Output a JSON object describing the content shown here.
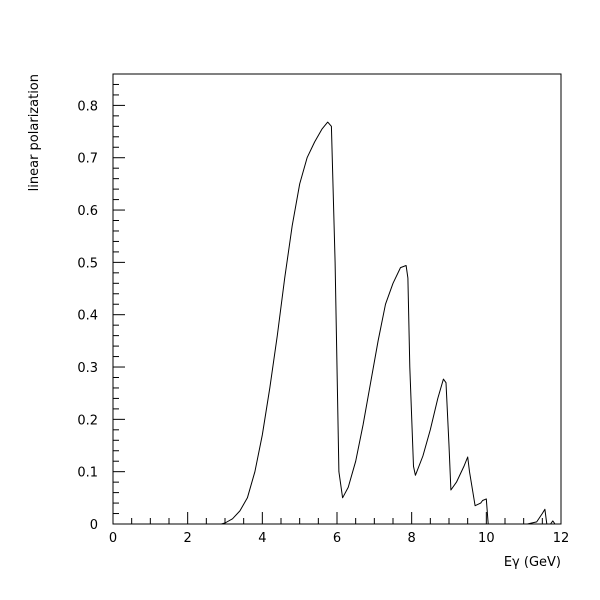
{
  "chart_data": {
    "type": "line",
    "title": "",
    "xlabel": "Eγ (GeV)",
    "ylabel": "linear polarization",
    "xlim": [
      0,
      12
    ],
    "ylim": [
      0,
      0.86
    ],
    "x_ticks": [
      0,
      2,
      4,
      6,
      8,
      10,
      12
    ],
    "x_tick_labels": [
      "0",
      "2",
      "4",
      "6",
      "8",
      "10",
      "12"
    ],
    "y_ticks": [
      0,
      0.1,
      0.2,
      0.3,
      0.4,
      0.5,
      0.6,
      0.7,
      0.8
    ],
    "y_tick_labels": [
      "0",
      "0.1",
      "0.2",
      "0.3",
      "0.4",
      "0.5",
      "0.6",
      "0.7",
      "0.8"
    ],
    "grid": false,
    "legend": "none",
    "series": [
      {
        "x": [
          2.5,
          2.9,
          3.0,
          3.2,
          3.4,
          3.6,
          3.8,
          4.0,
          4.2,
          4.4,
          4.6,
          4.8,
          5.0,
          5.2,
          5.4,
          5.6,
          5.75,
          5.85,
          5.95,
          6.05,
          6.15,
          6.3,
          6.5,
          6.7,
          6.9,
          7.1,
          7.3,
          7.5,
          7.7,
          7.85,
          7.9,
          7.95,
          8.05,
          8.1,
          8.3,
          8.5,
          8.7,
          8.85,
          8.92,
          9.0,
          9.05,
          9.2,
          9.4,
          9.5,
          9.55,
          9.7,
          9.85,
          9.9,
          10.0,
          10.05
        ],
        "y": [
          0.0,
          0.0,
          0.002,
          0.01,
          0.025,
          0.05,
          0.1,
          0.17,
          0.26,
          0.36,
          0.47,
          0.57,
          0.65,
          0.7,
          0.73,
          0.755,
          0.768,
          0.76,
          0.5,
          0.1,
          0.05,
          0.07,
          0.12,
          0.19,
          0.27,
          0.35,
          0.42,
          0.46,
          0.49,
          0.494,
          0.47,
          0.3,
          0.11,
          0.093,
          0.13,
          0.18,
          0.24,
          0.277,
          0.27,
          0.15,
          0.065,
          0.08,
          0.11,
          0.128,
          0.1,
          0.035,
          0.04,
          0.045,
          0.048,
          0.0
        ]
      },
      {
        "x": [
          11.1,
          11.35,
          11.5,
          11.57,
          11.62
        ],
        "y": [
          0.0,
          0.004,
          0.02,
          0.028,
          0.0
        ]
      },
      {
        "x": [
          11.72,
          11.78,
          11.84
        ],
        "y": [
          0.0,
          0.006,
          0.0
        ]
      }
    ]
  }
}
